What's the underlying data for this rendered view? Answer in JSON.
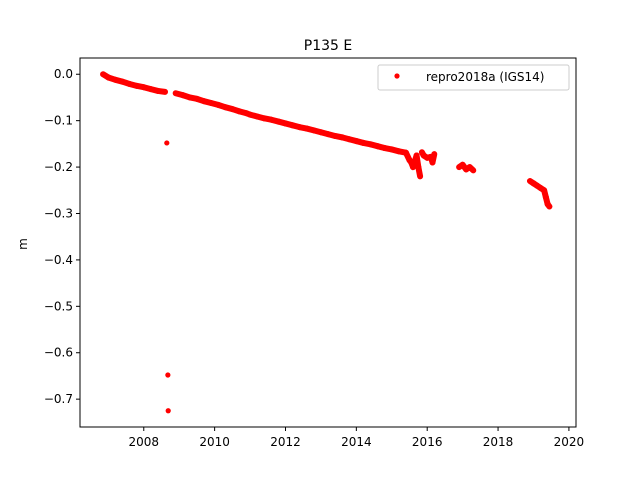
{
  "chart_data": {
    "type": "scatter",
    "title": "P135 E",
    "xlabel": "",
    "ylabel": "m",
    "xlim": [
      2006.2,
      2020.2
    ],
    "ylim": [
      -0.76,
      0.035
    ],
    "xticks": [
      2008,
      2010,
      2012,
      2014,
      2016,
      2018,
      2020
    ],
    "xtick_labels": [
      "2008",
      "2010",
      "2012",
      "2014",
      "2016",
      "2018",
      "2020"
    ],
    "yticks": [
      0.0,
      -0.1,
      -0.2,
      -0.3,
      -0.4,
      -0.5,
      -0.6,
      -0.7
    ],
    "ytick_labels": [
      "0.0",
      "−0.1",
      "−0.2",
      "−0.3",
      "−0.4",
      "−0.5",
      "−0.6",
      "−0.7"
    ],
    "legend_position": "top-right",
    "grid": false,
    "series": [
      {
        "name": "repro2018a (IGS14)",
        "color": "#ff0000",
        "marker": "circle",
        "x": [
          2006.85,
          2007.0,
          2007.2,
          2007.4,
          2007.6,
          2007.8,
          2008.0,
          2008.2,
          2008.4,
          2008.6,
          2008.65,
          2008.68,
          2008.69,
          2008.9,
          2009.1,
          2009.3,
          2009.5,
          2009.7,
          2009.9,
          2010.1,
          2010.3,
          2010.5,
          2010.7,
          2010.9,
          2011.0,
          2011.2,
          2011.4,
          2011.6,
          2011.8,
          2012.0,
          2012.2,
          2012.4,
          2012.6,
          2012.8,
          2013.0,
          2013.2,
          2013.4,
          2013.6,
          2013.8,
          2014.0,
          2014.2,
          2014.4,
          2014.6,
          2014.8,
          2015.0,
          2015.2,
          2015.4,
          2015.5,
          2015.55,
          2015.6,
          2015.7,
          2015.75,
          2015.8,
          2015.85,
          2015.9,
          2016.0,
          2016.1,
          2016.15,
          2016.2,
          2016.9,
          2017.0,
          2017.1,
          2017.2,
          2017.3,
          2018.9,
          2019.0,
          2019.1,
          2019.2,
          2019.3,
          2019.35,
          2019.4,
          2019.45
        ],
        "y": [
          0.0,
          -0.007,
          -0.012,
          -0.016,
          -0.021,
          -0.025,
          -0.028,
          -0.032,
          -0.036,
          -0.038,
          -0.148,
          -0.648,
          -0.725,
          -0.041,
          -0.045,
          -0.05,
          -0.053,
          -0.058,
          -0.062,
          -0.066,
          -0.071,
          -0.075,
          -0.08,
          -0.084,
          -0.087,
          -0.091,
          -0.095,
          -0.098,
          -0.102,
          -0.106,
          -0.11,
          -0.114,
          -0.117,
          -0.121,
          -0.125,
          -0.129,
          -0.133,
          -0.136,
          -0.14,
          -0.144,
          -0.148,
          -0.151,
          -0.155,
          -0.159,
          -0.162,
          -0.166,
          -0.169,
          -0.185,
          -0.19,
          -0.2,
          -0.175,
          -0.2,
          -0.22,
          -0.168,
          -0.175,
          -0.18,
          -0.178,
          -0.19,
          -0.172,
          -0.2,
          -0.195,
          -0.205,
          -0.2,
          -0.207,
          -0.23,
          -0.235,
          -0.24,
          -0.245,
          -0.25,
          -0.265,
          -0.28,
          -0.285
        ]
      }
    ]
  }
}
